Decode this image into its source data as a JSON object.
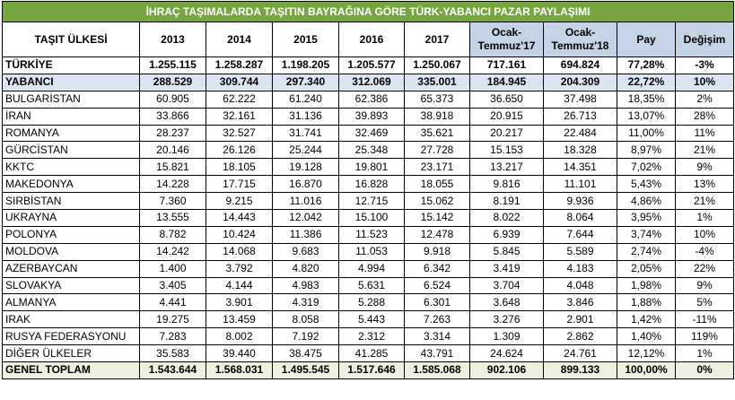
{
  "title": "İHRAÇ TAŞIMALARDA TAŞITIN BAYRAĞINA GÖRE TÜRK-YABANCI PAZAR PAYLAŞIMI",
  "header": [
    "TAŞIT ÜLKESİ",
    "2013",
    "2014",
    "2015",
    "2016",
    "2017",
    "Ocak-Temmuz'17",
    "Ocak-Temmuz'18",
    "Pay",
    "Değişim"
  ],
  "rows": [
    [
      "TÜRKİYE",
      "1.255.115",
      "1.258.287",
      "1.198.205",
      "1.205.577",
      "1.250.067",
      "717.161",
      "694.824",
      "77,28%",
      "-3%"
    ],
    [
      "YABANCI",
      "288.529",
      "309.744",
      "297.340",
      "312.069",
      "335.001",
      "184.945",
      "204.309",
      "22,72%",
      "10%"
    ],
    [
      "BULGARİSTAN",
      "60.905",
      "62.222",
      "61.240",
      "62.386",
      "65.373",
      "36.650",
      "37.498",
      "18,35%",
      "2%"
    ],
    [
      "İRAN",
      "33.866",
      "32.161",
      "31.136",
      "39.893",
      "38.918",
      "20.915",
      "26.713",
      "13,07%",
      "28%"
    ],
    [
      "ROMANYA",
      "28.237",
      "32.527",
      "31.741",
      "32.469",
      "35.621",
      "20.217",
      "22.484",
      "11,00%",
      "11%"
    ],
    [
      "GÜRCİSTAN",
      "20.146",
      "26.126",
      "25.244",
      "25.348",
      "27.728",
      "15.153",
      "18.328",
      "8,97%",
      "21%"
    ],
    [
      "KKTC",
      "15.821",
      "18.105",
      "19.128",
      "19.801",
      "23.171",
      "13.217",
      "14.351",
      "7,02%",
      "9%"
    ],
    [
      "MAKEDONYA",
      "14.228",
      "17.715",
      "16.870",
      "16.828",
      "18.055",
      "9.816",
      "11.101",
      "5,43%",
      "13%"
    ],
    [
      "SIRBİSTAN",
      "7.360",
      "9.215",
      "11.016",
      "12.715",
      "15.062",
      "8.191",
      "9.936",
      "4,86%",
      "21%"
    ],
    [
      "UKRAYNA",
      "13.555",
      "14.443",
      "12.042",
      "15.100",
      "15.142",
      "8.022",
      "8.064",
      "3,95%",
      "1%"
    ],
    [
      "POLONYA",
      "8.782",
      "10.424",
      "11.386",
      "11.523",
      "12.478",
      "6.939",
      "7.644",
      "3,74%",
      "10%"
    ],
    [
      "MOLDOVA",
      "14.242",
      "14.068",
      "9.683",
      "11.053",
      "9.918",
      "5.845",
      "5.589",
      "2,74%",
      "-4%"
    ],
    [
      "AZERBAYCAN",
      "1.400",
      "3.792",
      "4.820",
      "4.994",
      "6.342",
      "3.419",
      "4.183",
      "2,05%",
      "22%"
    ],
    [
      "SLOVAKYA",
      "3.405",
      "4.144",
      "4.983",
      "5.631",
      "6.524",
      "3.704",
      "4.048",
      "1,98%",
      "9%"
    ],
    [
      "ALMANYA",
      "4.441",
      "3.901",
      "4.319",
      "5.288",
      "6.301",
      "3.648",
      "3.846",
      "1,88%",
      "5%"
    ],
    [
      "IRAK",
      "19.275",
      "13.459",
      "8.058",
      "5.443",
      "7.263",
      "3.276",
      "2.901",
      "1,42%",
      "-11%"
    ],
    [
      "RUSYA FEDERASYONU",
      "7.283",
      "8.002",
      "7.192",
      "2.312",
      "3.314",
      "1.309",
      "2.862",
      "1,40%",
      "119%"
    ],
    [
      "DİĞER ÜLKELER",
      "35.583",
      "39.440",
      "38.475",
      "41.285",
      "43.791",
      "24.624",
      "24.761",
      "12,12%",
      "1%"
    ],
    [
      "GENEL TOPLAM",
      "1.543.644",
      "1.568.031",
      "1.495.545",
      "1.517.646",
      "1.585.068",
      "902.106",
      "899.133",
      "100,00%",
      "0%"
    ]
  ]
}
